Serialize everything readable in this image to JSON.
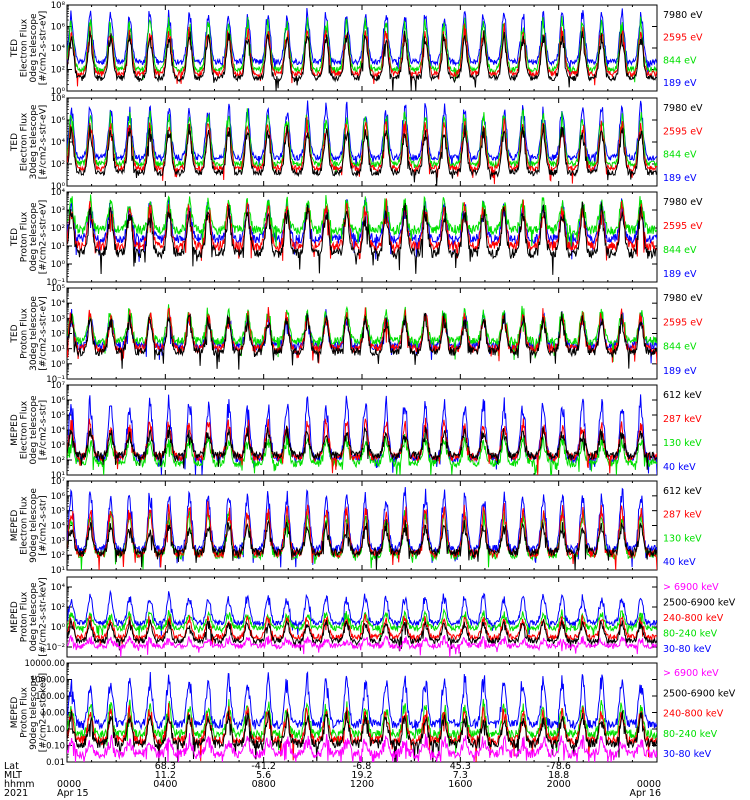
{
  "chart_data": {
    "type": "line",
    "time_range": [
      "2021-04-15 00:00",
      "2021-04-16 00:00"
    ],
    "colors": {
      "blue": "#0000ff",
      "red": "#ff0000",
      "green": "#00e000",
      "black": "#000000",
      "magenta": "#ff00ff"
    },
    "panels": [
      {
        "ylabel_lines": [
          "TED",
          "Electron Flux",
          "0deg telescope",
          "[#/cm2-s-str-eV]"
        ],
        "ylog": true,
        "yticks": [
          "10⁰",
          "10²",
          "10⁴",
          "10⁶",
          "10⁸"
        ],
        "ytick_exps": [
          0,
          2,
          4,
          6,
          8
        ],
        "ylim_exp": [
          0,
          8
        ],
        "series": [
          {
            "name": "7980 eV",
            "color": "black",
            "base": 1.2,
            "peak": 5.5
          },
          {
            "name": "2595 eV",
            "color": "red",
            "base": 1.6,
            "peak": 6.0
          },
          {
            "name": "844 eV",
            "color": "green",
            "base": 2.0,
            "peak": 6.8
          },
          {
            "name": "189 eV",
            "color": "blue",
            "base": 2.7,
            "peak": 7.6
          }
        ]
      },
      {
        "ylabel_lines": [
          "TED",
          "Electron Flux",
          "30deg telescope",
          "[#/cm2-s-str-eV]"
        ],
        "ylog": true,
        "yticks": [
          "10⁰",
          "10²",
          "10⁴",
          "10⁶",
          "10⁸"
        ],
        "ytick_exps": [
          0,
          2,
          4,
          6,
          8
        ],
        "ylim_exp": [
          0,
          8
        ],
        "series": [
          {
            "name": "7980 eV",
            "color": "black",
            "base": 1.2,
            "peak": 5.5
          },
          {
            "name": "2595 eV",
            "color": "red",
            "base": 1.6,
            "peak": 6.0
          },
          {
            "name": "844 eV",
            "color": "green",
            "base": 2.0,
            "peak": 6.8
          },
          {
            "name": "189 eV",
            "color": "blue",
            "base": 2.6,
            "peak": 7.5
          }
        ]
      },
      {
        "ylabel_lines": [
          "TED",
          "Proton Flux",
          "0deg telescope",
          "[#/cm2-s-str-eV]"
        ],
        "ylog": true,
        "yticks": [
          "10⁻¹",
          "10⁰",
          "10¹",
          "10²",
          "10³",
          "10⁴"
        ],
        "ytick_exps": [
          -1,
          0,
          1,
          2,
          3,
          4
        ],
        "ylim_exp": [
          -1,
          4
        ],
        "series": [
          {
            "name": "7980 eV",
            "color": "black",
            "base": 0.6,
            "peak": 3.2
          },
          {
            "name": "2595 eV",
            "color": "red",
            "base": 1.0,
            "peak": 3.3
          },
          {
            "name": "844 eV",
            "color": "green",
            "base": 1.9,
            "peak": 3.6
          },
          {
            "name": "189 eV",
            "color": "blue",
            "base": 1.4,
            "peak": 3.4
          }
        ]
      },
      {
        "ylabel_lines": [
          "TED",
          "Proton Flux",
          "30deg telescope",
          "[#/cm2-s-str-eV]"
        ],
        "ylog": true,
        "yticks": [
          "10⁻¹",
          "10⁰",
          "10¹",
          "10²",
          "10³",
          "10⁴",
          "10⁵"
        ],
        "ytick_exps": [
          -1,
          0,
          1,
          2,
          3,
          4,
          5
        ],
        "ylim_exp": [
          -1,
          5
        ],
        "series": [
          {
            "name": "7980 eV",
            "color": "black",
            "base": 0.8,
            "peak": 3.2
          },
          {
            "name": "2595 eV",
            "color": "red",
            "base": 1.0,
            "peak": 3.4
          },
          {
            "name": "844 eV",
            "color": "green",
            "base": 1.5,
            "peak": 3.6
          },
          {
            "name": "189 eV",
            "color": "blue",
            "base": 1.2,
            "peak": 3.3
          }
        ]
      },
      {
        "ylabel_lines": [
          "MEPED",
          "Electron Flux",
          "0deg telescope",
          "[#/cm2-s-str]"
        ],
        "ylog": true,
        "yticks": [
          "10¹",
          "10²",
          "10³",
          "10⁴",
          "10⁵",
          "10⁶",
          "10⁷"
        ],
        "ytick_exps": [
          1,
          2,
          3,
          4,
          5,
          6,
          7
        ],
        "ylim_exp": [
          1,
          7
        ],
        "series": [
          {
            "name": "612 keV",
            "color": "black",
            "base": 2.3,
            "peak": 4.0
          },
          {
            "name": "287 keV",
            "color": "red",
            "base": 2.2,
            "peak": 4.6
          },
          {
            "name": "130 keV",
            "color": "green",
            "base": 1.8,
            "peak": 3.5
          },
          {
            "name": "40 keV",
            "color": "blue",
            "base": 2.1,
            "peak": 6.2
          }
        ]
      },
      {
        "ylabel_lines": [
          "MEPED",
          "Electron Flux",
          "90deg telescope",
          "[#/cm2-s-str]"
        ],
        "ylog": true,
        "yticks": [
          "10¹",
          "10²",
          "10³",
          "10⁴",
          "10⁵",
          "10⁶",
          "10⁷"
        ],
        "ytick_exps": [
          1,
          2,
          3,
          4,
          5,
          6,
          7
        ],
        "ylim_exp": [
          1,
          7
        ],
        "series": [
          {
            "name": "612 keV",
            "color": "black",
            "base": 2.2,
            "peak": 4.1
          },
          {
            "name": "287 keV",
            "color": "red",
            "base": 2.1,
            "peak": 5.4
          },
          {
            "name": "130 keV",
            "color": "green",
            "base": 2.0,
            "peak": 5.0
          },
          {
            "name": "40 keV",
            "color": "blue",
            "base": 2.4,
            "peak": 6.5
          }
        ]
      },
      {
        "ylabel_lines": [
          "MEPED",
          "Proton Flux",
          "0deg telescope",
          "[#/cm2-s-str-keV]"
        ],
        "ylog": true,
        "yticks": [
          "10⁻²",
          "10⁰",
          "10²",
          "10⁴"
        ],
        "ytick_exps": [
          -2,
          0,
          2,
          4
        ],
        "ylim_exp": [
          -3,
          5
        ],
        "series": [
          {
            "name": "> 6900 keV",
            "color": "magenta",
            "base": -1.9,
            "peak": -1.2
          },
          {
            "name": "2500-6900 keV",
            "color": "black",
            "base": -1.4,
            "peak": 0.6
          },
          {
            "name": "240-800 keV",
            "color": "red",
            "base": -1.0,
            "peak": 1.0
          },
          {
            "name": "80-240 keV",
            "color": "green",
            "base": -0.1,
            "peak": 1.5
          },
          {
            "name": "30-80 keV",
            "color": "blue",
            "base": 0.4,
            "peak": 3.3
          }
        ]
      },
      {
        "ylabel_lines": [
          "MEPED",
          "Proton Flux",
          "90deg telescope",
          "[#/cm2-s-str-keV]"
        ],
        "ylog": true,
        "yticks": [
          "0.01",
          "0.10",
          "1.00",
          "10.00",
          "100.00",
          "1000.00",
          "10000.00"
        ],
        "ytick_exps": [
          -2,
          -1,
          0,
          1,
          2,
          3,
          4
        ],
        "ylim_exp": [
          -2,
          4
        ],
        "series": [
          {
            "name": "> 6900 keV",
            "color": "magenta",
            "base": -1.5,
            "peak": -0.6
          },
          {
            "name": "2500-6900 keV",
            "color": "black",
            "base": -0.9,
            "peak": 0.9
          },
          {
            "name": "240-800 keV",
            "color": "red",
            "base": -0.7,
            "peak": 1.2
          },
          {
            "name": "80-240 keV",
            "color": "green",
            "base": -0.3,
            "peak": 1.5
          },
          {
            "name": "30-80 keV",
            "color": "blue",
            "base": 0.3,
            "peak": 3.2
          }
        ]
      }
    ]
  },
  "footer": {
    "row_labels": [
      "Lat",
      "MLT",
      "hhmm",
      "2021"
    ],
    "columns": [
      {
        "lat": "",
        "mlt": "",
        "hhmm": "0000",
        "date": "Apr 15"
      },
      {
        "lat": "68.3",
        "mlt": "11.2",
        "hhmm": "0400",
        "date": ""
      },
      {
        "lat": "-41.2",
        "mlt": "5.6",
        "hhmm": "0800",
        "date": ""
      },
      {
        "lat": "-6.8",
        "mlt": "19.2",
        "hhmm": "1200",
        "date": ""
      },
      {
        "lat": "45.3",
        "mlt": "7.3",
        "hhmm": "1600",
        "date": ""
      },
      {
        "lat": "-78.6",
        "mlt": "18.8",
        "hhmm": "2000",
        "date": ""
      },
      {
        "lat": "",
        "mlt": "",
        "hhmm": "0000",
        "date": "Apr 16"
      }
    ]
  }
}
